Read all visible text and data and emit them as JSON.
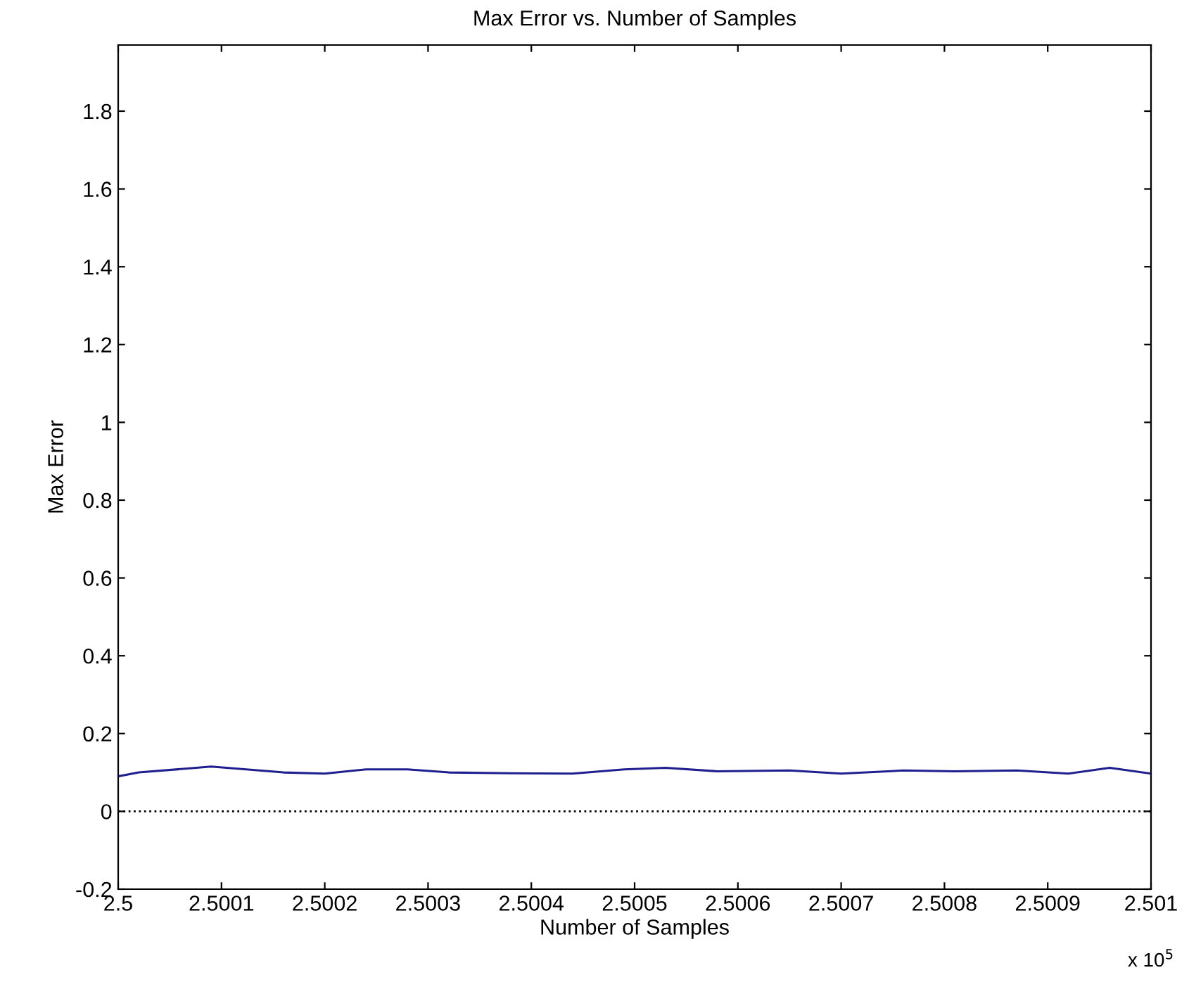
{
  "chart_data": {
    "type": "line",
    "title": "Max Error vs. Number of Samples",
    "xlabel": "Number of Samples",
    "ylabel": "Max Error",
    "x": [
      2.5,
      2.50002,
      2.50009,
      2.50016,
      2.5002,
      2.50024,
      2.50028,
      2.50032,
      2.50038,
      2.50044,
      2.50049,
      2.50053,
      2.50058,
      2.50065,
      2.5007,
      2.50076,
      2.50081,
      2.50087,
      2.50092,
      2.50096,
      2.501
    ],
    "series": [
      {
        "color": "#1f1f8f",
        "values": [
          0.09,
          0.1,
          0.115,
          0.1,
          0.097,
          0.108,
          0.108,
          0.1,
          0.098,
          0.097,
          0.108,
          0.112,
          0.103,
          0.105,
          0.097,
          0.105,
          0.103,
          0.105,
          0.097,
          0.112,
          0.097
        ]
      }
    ],
    "xlim": [
      2.5,
      2.501
    ],
    "xticks": [
      2.5,
      2.5001,
      2.5002,
      2.5003,
      2.5004,
      2.5005,
      2.5006,
      2.5007,
      2.5008,
      2.5009,
      2.501
    ],
    "ylim": [
      -0.2,
      1.97
    ],
    "yticks": [
      -0.2,
      0,
      0.2,
      0.4,
      0.6,
      0.8,
      1,
      1.2,
      1.4,
      1.6,
      1.8
    ],
    "ref_lines": [
      {
        "axis": "y",
        "value": 0,
        "color": "#000000",
        "line_style": "dotted"
      }
    ],
    "annotations": [
      "x 10$^{5}$"
    ],
    "grid": false,
    "legend": false,
    "marker": "none",
    "line_style": "solid"
  }
}
